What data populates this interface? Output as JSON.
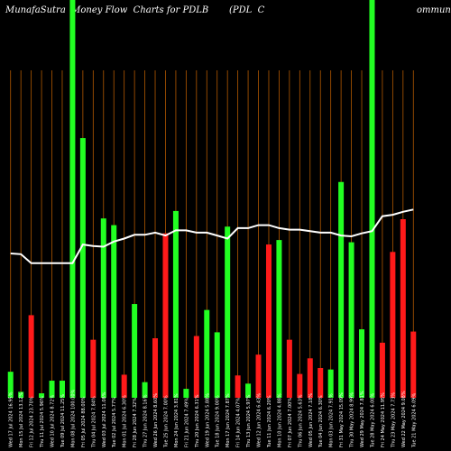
{
  "header": {
    "title_left": "MunafaSutra  Money Flow  Charts for PDLB",
    "title_mid": "(PDL  C",
    "title_right": "ommun"
  },
  "colors": {
    "background": "#000000",
    "up": "#22ff22",
    "down": "#ff1a1a",
    "line": "#ffffff",
    "grid": "#b35900"
  },
  "chart_data": {
    "type": "bar",
    "title": "MunafaSutra  Money Flow  Charts for PDLB (PDL  Commun",
    "categories": [
      "Wed 17 Jul 2024 16.95%",
      "Mon 15 Jul 2024 13.12%",
      "Fri 12 Jul 2024 23.70%",
      "Thu 11 Jul 2024 5.96%",
      "Wed 10 Jul 2024 8.72%",
      "Tue 09 Jul 2024 11.25%",
      "Mon 08 Jul 2024 100.00%",
      "Fri 05 Jul 2024 88.00%",
      "Thu 04 Jul 2024 7.84%",
      "Wed 03 Jul 2024 11.08%",
      "Tue 02 Jul 2024 5.77%",
      "Mon 01 Jul 2024 6.30%",
      "Fri 28 Jun 2024 7.32%",
      "Thu 27 Jun 2024 8.16%",
      "Wed 26 Jun 2024 8.60%",
      "Tue 25 Jun 2024 7.00%",
      "Mon 24 Jun 2024 3.81%",
      "Fri 21 Jun 2024 7.49%",
      "Thu 20 Jun 2024 6.31%",
      "Wed 19 Jun 2024 5.88%",
      "Tue 18 Jun 2024 9.00%",
      "Mon 17 Jun 2024 7.87%",
      "Fri 14 Jun 2024 4.07%",
      "Thu 13 Jun 2024 5.97%",
      "Wed 12 Jun 2024 6.43%",
      "Tue 11 Jun 2024 6.20%",
      "Mon 10 Jun 2024 4.88%",
      "Fri 07 Jun 2024 7.00%",
      "Thu 06 Jun 2024 5.63%",
      "Wed 05 Jun 2024 7.18%",
      "Tue 04 Jun 2024 6.30%",
      "Mon 03 Jun 2024 7.91%",
      "Fri 31 May 2024 15.09%",
      "Thu 30 May 2024 8.99%",
      "Wed 29 May 2024 7.81%",
      "Tue 28 May 2024 6.00%",
      "Fri 24 May 2024 11.95%",
      "Thu 23 May 2024 7.73%",
      "Wed 22 May 2024 9.08%",
      "Tue 21 May 2024 6.09%"
    ],
    "series": [
      {
        "values": [
          35,
          8,
          111,
          6,
          23,
          23,
          440,
          349,
          78,
          241,
          232,
          31,
          126,
          21,
          80,
          221,
          251,
          12,
          83,
          118,
          88,
          230,
          30,
          19,
          58,
          206,
          212,
          78,
          32,
          53,
          40,
          38,
          290,
          209,
          92,
          440,
          74,
          196,
          240,
          89
        ],
        "colors": [
          "up",
          "up",
          "down",
          "up",
          "up",
          "up",
          "up",
          "up",
          "down",
          "up",
          "up",
          "down",
          "up",
          "up",
          "down",
          "down",
          "up",
          "up",
          "down",
          "up",
          "up",
          "up",
          "down",
          "up",
          "down",
          "down",
          "up",
          "down",
          "down",
          "down",
          "down",
          "up",
          "up",
          "up",
          "up",
          "up",
          "down",
          "down",
          "down",
          "down"
        ]
      },
      {
        "values": [
          194,
          193,
          181,
          181,
          181,
          181,
          181,
          206,
          204,
          203,
          210,
          214,
          219,
          219,
          222,
          218,
          225,
          225,
          222,
          222,
          218,
          214,
          228,
          228,
          232,
          232,
          228,
          226,
          226,
          224,
          222,
          222,
          218,
          217,
          221,
          224,
          244,
          246,
          250,
          253
        ]
      }
    ],
    "ylim": [
      0,
      440
    ],
    "grid": "vertical"
  }
}
